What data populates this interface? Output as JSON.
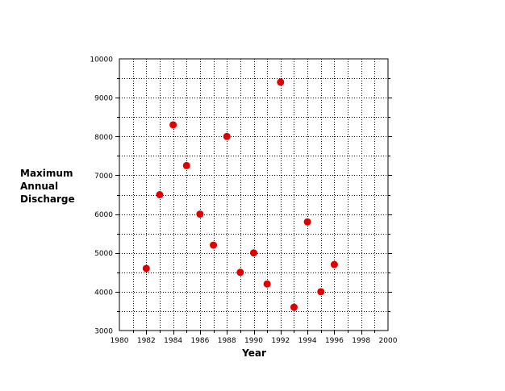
{
  "chart_data": {
    "type": "scatter",
    "title": "",
    "xlabel": "Year",
    "ylabel_lines": [
      "Maximum",
      "Annual",
      "Discharge"
    ],
    "xlim": [
      1980,
      2000
    ],
    "ylim": [
      3000,
      10000
    ],
    "x_ticks": [
      1980,
      1982,
      1984,
      1986,
      1988,
      1990,
      1992,
      1994,
      1996,
      1998,
      2000
    ],
    "y_ticks": [
      3000,
      4000,
      5000,
      6000,
      7000,
      8000,
      9000,
      10000
    ],
    "x_minor_step": 1,
    "y_minor_step": 500,
    "grid": "dotted",
    "marker_color": "#e00000",
    "series": [
      {
        "points": [
          {
            "x": 1982,
            "y": 4600
          },
          {
            "x": 1983,
            "y": 6500
          },
          {
            "x": 1984,
            "y": 8300
          },
          {
            "x": 1985,
            "y": 7250
          },
          {
            "x": 1986,
            "y": 6000
          },
          {
            "x": 1987,
            "y": 5200
          },
          {
            "x": 1988,
            "y": 8000
          },
          {
            "x": 1989,
            "y": 4500
          },
          {
            "x": 1990,
            "y": 5000
          },
          {
            "x": 1991,
            "y": 4200
          },
          {
            "x": 1992,
            "y": 9400
          },
          {
            "x": 1993,
            "y": 3600
          },
          {
            "x": 1994,
            "y": 5800
          },
          {
            "x": 1995,
            "y": 4000
          },
          {
            "x": 1996,
            "y": 4700
          }
        ]
      }
    ]
  }
}
